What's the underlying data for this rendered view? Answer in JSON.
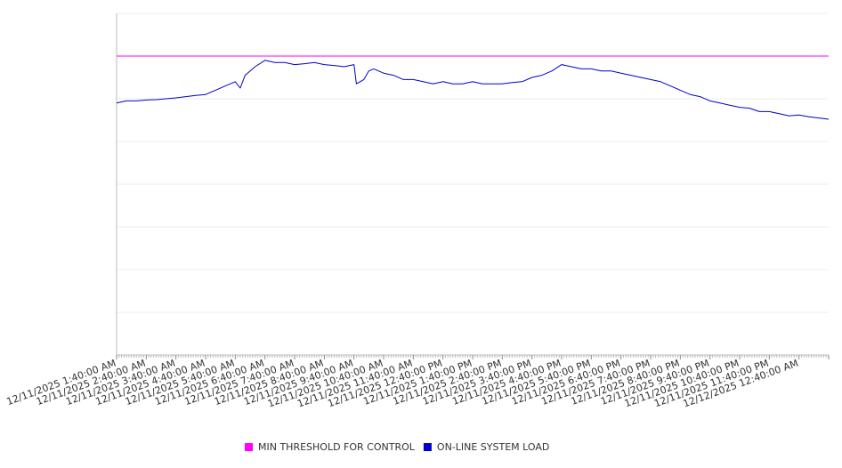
{
  "chart_data": {
    "type": "line",
    "title": "",
    "xlabel": "",
    "ylabel": "",
    "x_tick_labels": [
      "12/11/2025 1:40:00 AM",
      "12/11/2025 2:40:00 AM",
      "12/11/2025 3:40:00 AM",
      "12/11/2025 4:40:00 AM",
      "12/11/2025 5:40:00 AM",
      "12/11/2025 6:40:00 AM",
      "12/11/2025 7:40:00 AM",
      "12/11/2025 8:40:00 AM",
      "12/11/2025 9:40:00 AM",
      "12/11/2025 10:40:00 AM",
      "12/11/2025 11:40:00 AM",
      "12/11/2025 12:40:00 PM",
      "12/11/2025 1:40:00 PM",
      "12/11/2025 2:40:00 PM",
      "12/11/2025 3:40:00 PM",
      "12/11/2025 4:40:00 PM",
      "12/11/2025 5:40:00 PM",
      "12/11/2025 6:40:00 PM",
      "12/11/2025 7:40:00 PM",
      "12/11/2025 8:40:00 PM",
      "12/11/2025 9:40:00 PM",
      "12/11/2025 10:40:00 PM",
      "12/11/2025 11:40:00 PM",
      "12/12/2025 12:40:00 AM"
    ],
    "x_start": "12/11/2025 1:40:00 AM",
    "x_end": "12/12/2025 1:40:00 AM",
    "y_axis_labels_shown": false,
    "grid": "horizontal",
    "legend_position": "bottom",
    "series": [
      {
        "name": "MIN THRESHOLD FOR CONTROL",
        "color": "#ff00ff",
        "x": [
          "12/11/2025 1:40:00 AM",
          "12/12/2025 1:40:00 AM"
        ],
        "y": [
          7.0,
          7.0
        ]
      },
      {
        "name": "ON-LINE SYSTEM LOAD",
        "color": "#0000cc",
        "x": [
          "12/11/2025 1:40:00 AM",
          "12/11/2025 2:00:00 AM",
          "12/11/2025 2:20:00 AM",
          "12/11/2025 2:40:00 AM",
          "12/11/2025 3:00:00 AM",
          "12/11/2025 3:20:00 AM",
          "12/11/2025 3:40:00 AM",
          "12/11/2025 4:00:00 AM",
          "12/11/2025 4:20:00 AM",
          "12/11/2025 4:40:00 AM",
          "12/11/2025 5:00:00 AM",
          "12/11/2025 5:20:00 AM",
          "12/11/2025 5:40:00 AM",
          "12/11/2025 5:50:00 AM",
          "12/11/2025 6:00:00 AM",
          "12/11/2025 6:20:00 AM",
          "12/11/2025 6:40:00 AM",
          "12/11/2025 7:00:00 AM",
          "12/11/2025 7:20:00 AM",
          "12/11/2025 7:40:00 AM",
          "12/11/2025 8:00:00 AM",
          "12/11/2025 8:20:00 AM",
          "12/11/2025 8:40:00 AM",
          "12/11/2025 9:00:00 AM",
          "12/11/2025 9:20:00 AM",
          "12/11/2025 9:40:00 AM",
          "12/11/2025 9:45:00 AM",
          "12/11/2025 10:00:00 AM",
          "12/11/2025 10:10:00 AM",
          "12/11/2025 10:20:00 AM",
          "12/11/2025 10:40:00 AM",
          "12/11/2025 11:00:00 AM",
          "12/11/2025 11:20:00 AM",
          "12/11/2025 11:40:00 AM",
          "12/11/2025 12:00:00 PM",
          "12/11/2025 12:20:00 PM",
          "12/11/2025 12:40:00 PM",
          "12/11/2025 1:00:00 PM",
          "12/11/2025 1:20:00 PM",
          "12/11/2025 1:40:00 PM",
          "12/11/2025 2:00:00 PM",
          "12/11/2025 2:20:00 PM",
          "12/11/2025 2:40:00 PM",
          "12/11/2025 3:00:00 PM",
          "12/11/2025 3:20:00 PM",
          "12/11/2025 3:40:00 PM",
          "12/11/2025 4:00:00 PM",
          "12/11/2025 4:20:00 PM",
          "12/11/2025 4:40:00 PM",
          "12/11/2025 5:00:00 PM",
          "12/11/2025 5:20:00 PM",
          "12/11/2025 5:40:00 PM",
          "12/11/2025 6:00:00 PM",
          "12/11/2025 6:20:00 PM",
          "12/11/2025 6:40:00 PM",
          "12/11/2025 7:00:00 PM",
          "12/11/2025 7:20:00 PM",
          "12/11/2025 7:40:00 PM",
          "12/11/2025 8:00:00 PM",
          "12/11/2025 8:20:00 PM",
          "12/11/2025 8:40:00 PM",
          "12/11/2025 9:00:00 PM",
          "12/11/2025 9:20:00 PM",
          "12/11/2025 9:40:00 PM",
          "12/11/2025 10:00:00 PM",
          "12/11/2025 10:20:00 PM",
          "12/11/2025 10:40:00 PM",
          "12/11/2025 11:00:00 PM",
          "12/11/2025 11:20:00 PM",
          "12/11/2025 11:40:00 PM",
          "12/12/2025 12:00:00 AM",
          "12/12/2025 12:20:00 AM",
          "12/12/2025 12:40:00 AM",
          "12/12/2025 1:00:00 AM",
          "12/12/2025 1:20:00 AM",
          "12/12/2025 1:40:00 AM"
        ],
        "y": [
          5.9,
          5.95,
          5.95,
          5.97,
          5.98,
          6.0,
          6.02,
          6.05,
          6.08,
          6.1,
          6.2,
          6.3,
          6.4,
          6.25,
          6.55,
          6.75,
          6.9,
          6.85,
          6.85,
          6.8,
          6.82,
          6.85,
          6.8,
          6.78,
          6.75,
          6.8,
          6.35,
          6.45,
          6.65,
          6.7,
          6.6,
          6.55,
          6.45,
          6.45,
          6.4,
          6.35,
          6.4,
          6.35,
          6.35,
          6.4,
          6.35,
          6.35,
          6.35,
          6.38,
          6.4,
          6.5,
          6.55,
          6.65,
          6.8,
          6.75,
          6.7,
          6.7,
          6.65,
          6.65,
          6.6,
          6.55,
          6.5,
          6.45,
          6.4,
          6.3,
          6.2,
          6.1,
          6.05,
          5.95,
          5.9,
          5.85,
          5.8,
          5.78,
          5.7,
          5.7,
          5.65,
          5.6,
          5.62,
          5.58,
          5.55,
          5.52
        ]
      }
    ],
    "ylim": [
      0,
      8
    ]
  }
}
